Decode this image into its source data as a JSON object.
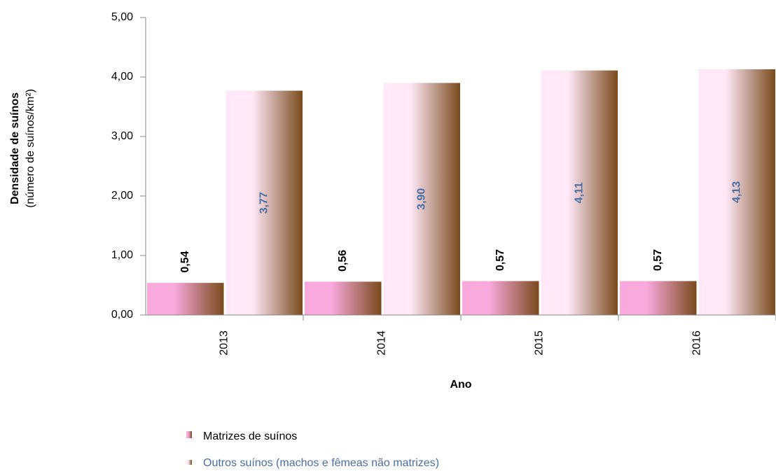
{
  "chart_data": {
    "type": "bar",
    "y_label_title": "Densidade de suínos",
    "y_label_unit": "(número de suínos/km²)",
    "x_label": "Ano",
    "categories": [
      "2013",
      "2014",
      "2015",
      "2016"
    ],
    "series": [
      {
        "name": "Matrizes de suínos",
        "color": "#f9a9dc",
        "label_color": "#000000",
        "values": [
          0.54,
          0.56,
          0.57,
          0.57
        ],
        "value_labels": [
          "0,54",
          "0,56",
          "0,57",
          "0,57"
        ]
      },
      {
        "name": "Outros suínos (machos e fêmeas não matrizes)",
        "color": "#ffe9f8",
        "label_color": "#4a6fa5",
        "values": [
          3.77,
          3.9,
          4.11,
          4.13
        ],
        "value_labels": [
          "3,77",
          "3,90",
          "4,11",
          "4,13"
        ]
      }
    ],
    "ylim": [
      0,
      5
    ],
    "yticks": [
      {
        "value": 0,
        "label": "0,00"
      },
      {
        "value": 1,
        "label": "1,00"
      },
      {
        "value": 2,
        "label": "2,00"
      },
      {
        "value": 3,
        "label": "3,00"
      },
      {
        "value": 4,
        "label": "4,00"
      },
      {
        "value": 5,
        "label": "5,00"
      }
    ]
  }
}
